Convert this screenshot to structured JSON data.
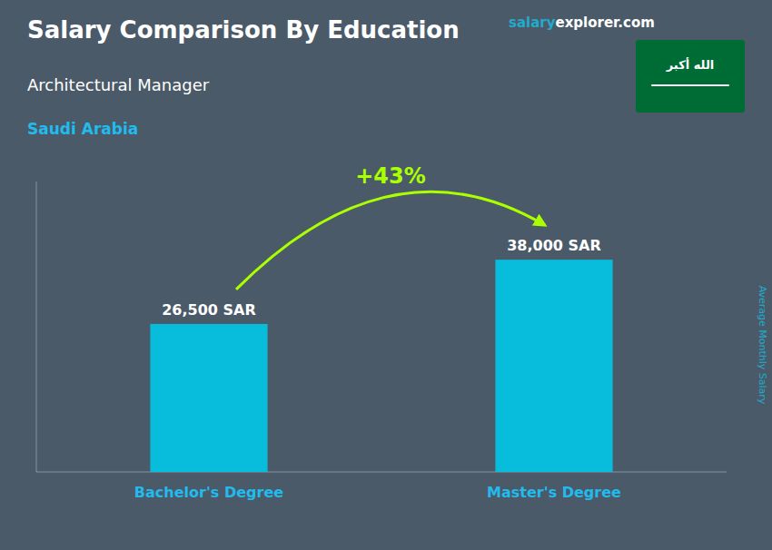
{
  "chart_data": {
    "type": "bar",
    "title": "Salary Comparison By Education",
    "subtitle": "Architectural Manager",
    "country": "Saudi Arabia",
    "watermark": [
      "salary",
      "explorer.com"
    ],
    "flag_text": "الله أكبر",
    "ylabel": "Average Monthly Salary",
    "categories": [
      "Bachelor's Degree",
      "Master's Degree"
    ],
    "values": [
      26500,
      38000
    ],
    "value_labels": [
      "26,500 SAR",
      "38,000 SAR"
    ],
    "data_labels": true,
    "annotation": "+43%",
    "color": "#00c8e8",
    "ylim": [
      0,
      52000
    ],
    "tick_labels": false,
    "grid": false
  }
}
